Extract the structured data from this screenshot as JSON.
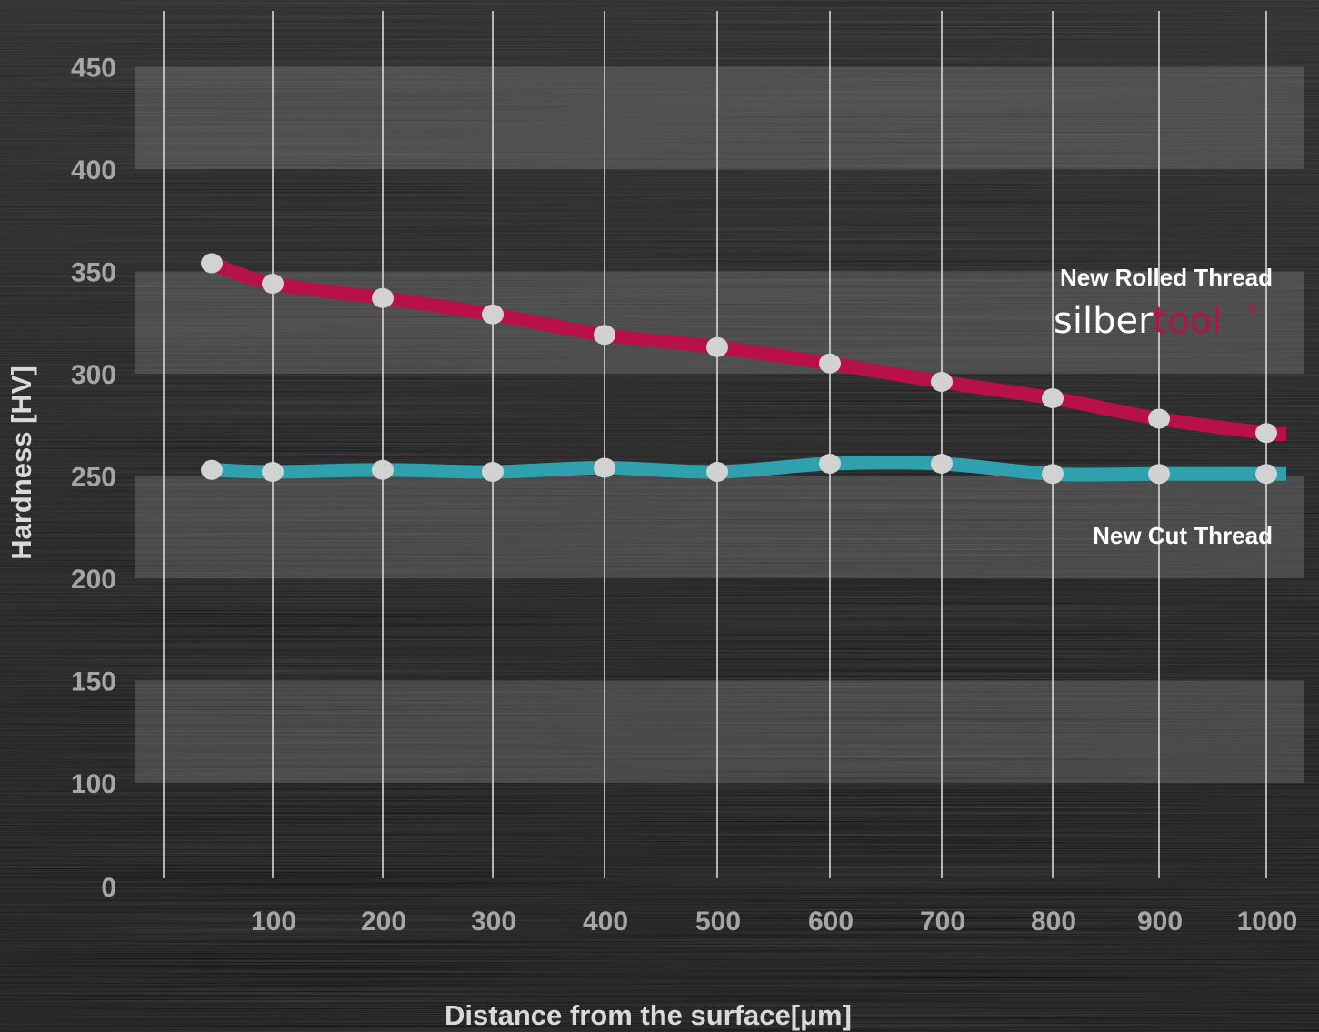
{
  "colors": {
    "rolled": "#b8104a",
    "cut": "#2fa0ad",
    "marker": "#d2d2d2",
    "grid": "#d8d8d8",
    "band": "rgba(150,150,150,0.30)",
    "brand_accent": "#b8104a"
  },
  "chart_data": {
    "type": "line",
    "xlabel": "Distance from the surface[μm]",
    "ylabel": "Hardness [HV]",
    "x_ticks": [
      100,
      200,
      300,
      400,
      500,
      600,
      700,
      800,
      900,
      1000
    ],
    "y_ticks": [
      0,
      100,
      150,
      200,
      250,
      300,
      350,
      400,
      450
    ],
    "grid": "vertical lines at x ticks, alternating horizontal bands",
    "legend": "inline labels on right",
    "series": [
      {
        "name": "New Rolled Thread",
        "color": "#b8104a",
        "x": [
          50,
          100,
          200,
          300,
          400,
          500,
          600,
          700,
          800,
          900,
          1000
        ],
        "y": [
          354,
          344,
          337,
          329,
          319,
          313,
          305,
          296,
          288,
          278,
          271
        ]
      },
      {
        "name": "New Cut Thread",
        "color": "#2fa0ad",
        "x": [
          50,
          100,
          200,
          300,
          400,
          500,
          600,
          700,
          800,
          900,
          1000
        ],
        "y": [
          253,
          252,
          253,
          252,
          254,
          252,
          256,
          256,
          251,
          251,
          251
        ]
      }
    ]
  },
  "logo": {
    "text_left": "silber",
    "text_right": "tool",
    "mark": "®"
  }
}
